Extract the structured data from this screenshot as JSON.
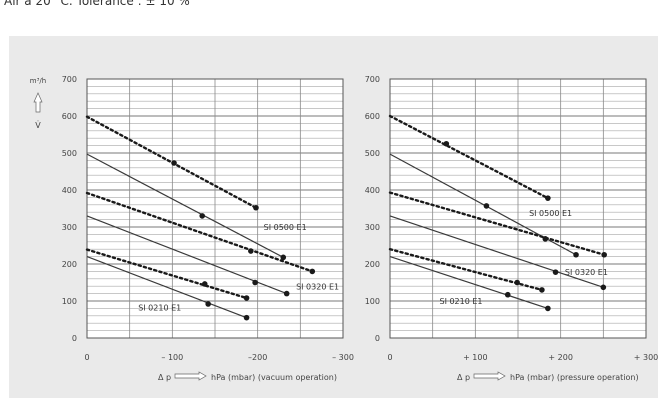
{
  "caption": "Air à 20 °C. Tolérance : ± 10 %",
  "chart_data": [
    {
      "type": "line",
      "unit_top": "m³/h",
      "flow_symbol": "V̇",
      "ylim": [
        0,
        700
      ],
      "yticks": [
        0,
        100,
        200,
        300,
        400,
        500,
        600,
        700
      ],
      "xlim": [
        0,
        300
      ],
      "xticks": [
        {
          "v": 0,
          "label": "0"
        },
        {
          "v": 100,
          "label": "– 100"
        },
        {
          "v": 200,
          "label": "–200"
        },
        {
          "v": 300,
          "label": "– 300"
        }
      ],
      "xlabel_prefix": "Δ p",
      "xlabel": "hPa (mbar) (vacuum operation)",
      "series": [
        {
          "name": "SI 0500 E1",
          "style": "solid",
          "x": [
            0,
            230
          ],
          "y": [
            497,
            218
          ],
          "markers": [
            [
              135,
              330
            ],
            [
              230,
              218
            ]
          ]
        },
        {
          "name": "SI 0500 E1",
          "style": "dotted",
          "x": [
            0,
            198
          ],
          "y": [
            598,
            352
          ],
          "markers": [
            [
              102,
              473
            ],
            [
              198,
              352
            ]
          ]
        },
        {
          "name": "SI 0320 E1",
          "style": "solid",
          "x": [
            0,
            234
          ],
          "y": [
            330,
            120
          ],
          "markers": [
            [
              197,
              150
            ],
            [
              234,
              120
            ]
          ]
        },
        {
          "name": "SI 0320 E1",
          "style": "dotted",
          "x": [
            0,
            264
          ],
          "y": [
            392,
            180
          ],
          "markers": [
            [
              192,
              235
            ],
            [
              264,
              180
            ]
          ]
        },
        {
          "name": "SI 0210 E1",
          "style": "solid",
          "x": [
            0,
            187
          ],
          "y": [
            220,
            55
          ],
          "markers": [
            [
              142,
              92
            ],
            [
              187,
              55
            ]
          ]
        },
        {
          "name": "SI 0210 E1",
          "style": "dotted",
          "x": [
            0,
            187
          ],
          "y": [
            239,
            108
          ],
          "markers": [
            [
              138,
              146
            ],
            [
              187,
              108
            ]
          ]
        }
      ],
      "labels": [
        {
          "text": "SI 0500 E1",
          "x": 207,
          "y": 300
        },
        {
          "text": "SI 0320 E1",
          "x": 245,
          "y": 139
        },
        {
          "text": "SI 0210 E1",
          "x": 60,
          "y": 82
        }
      ]
    },
    {
      "type": "line",
      "ylim": [
        0,
        700
      ],
      "yticks": [
        0,
        100,
        200,
        300,
        400,
        500,
        600,
        700
      ],
      "xlim": [
        0,
        300
      ],
      "xticks": [
        {
          "v": 0,
          "label": "0"
        },
        {
          "v": 100,
          "label": "+ 100"
        },
        {
          "v": 200,
          "label": "+ 200"
        },
        {
          "v": 300,
          "label": "+ 300"
        }
      ],
      "xlabel_prefix": "Δ p",
      "xlabel": "hPa (mbar) (pressure operation)",
      "series": [
        {
          "name": "SI 0500 E1",
          "style": "solid",
          "x": [
            0,
            218
          ],
          "y": [
            497,
            225
          ],
          "markers": [
            [
              113,
              357
            ],
            [
              218,
              225
            ]
          ]
        },
        {
          "name": "SI 0500 E1",
          "style": "dotted",
          "x": [
            0,
            185
          ],
          "y": [
            600,
            378
          ],
          "markers": [
            [
              66,
              525
            ],
            [
              185,
              378
            ]
          ]
        },
        {
          "name": "SI 0320 E1",
          "style": "solid",
          "x": [
            0,
            250
          ],
          "y": [
            330,
            137
          ],
          "markers": [
            [
              194,
              178
            ],
            [
              250,
              137
            ]
          ]
        },
        {
          "name": "SI 0320 E1",
          "style": "dotted",
          "x": [
            0,
            251
          ],
          "y": [
            393,
            225
          ],
          "markers": [
            [
              182,
              268
            ],
            [
              251,
              225
            ]
          ]
        },
        {
          "name": "SI 0210 E1",
          "style": "solid",
          "x": [
            0,
            185
          ],
          "y": [
            220,
            80
          ],
          "markers": [
            [
              138,
              117
            ],
            [
              185,
              80
            ]
          ]
        },
        {
          "name": "SI 0210 E1",
          "style": "dotted",
          "x": [
            0,
            178
          ],
          "y": [
            240,
            130
          ],
          "markers": [
            [
              149,
              150
            ],
            [
              178,
              130
            ]
          ]
        }
      ],
      "labels": [
        {
          "text": "SI 0500 E1",
          "x": 163,
          "y": 338
        },
        {
          "text": "SI 0320 E1",
          "x": 205,
          "y": 178
        },
        {
          "text": "SI 0210 E1",
          "x": 58,
          "y": 100
        }
      ]
    }
  ]
}
